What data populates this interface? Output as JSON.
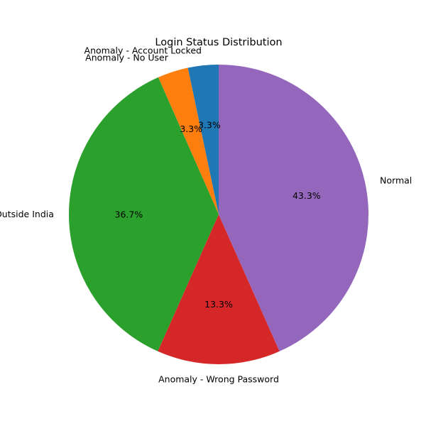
{
  "chart_data": {
    "type": "pie",
    "title": "Login Status Distribution",
    "start_angle_deg": 90,
    "direction": "counterclockwise",
    "autopct_format": "%.1f%%",
    "slices": [
      {
        "label": "Anomaly - Account Locked",
        "value": 3.3,
        "pct_label": "3.3%",
        "color": "#1f77b4"
      },
      {
        "label": "Anomaly - No User",
        "value": 3.3,
        "pct_label": "3.3%",
        "color": "#ff7f0e"
      },
      {
        "label": "Anomaly - Outside India",
        "value": 36.7,
        "pct_label": "36.7%",
        "color": "#2ca02c"
      },
      {
        "label": "Anomaly - Wrong Password",
        "value": 13.3,
        "pct_label": "13.3%",
        "color": "#d62728"
      },
      {
        "label": "Normal",
        "value": 43.3,
        "pct_label": "43.3%",
        "color": "#9467bd"
      }
    ]
  }
}
